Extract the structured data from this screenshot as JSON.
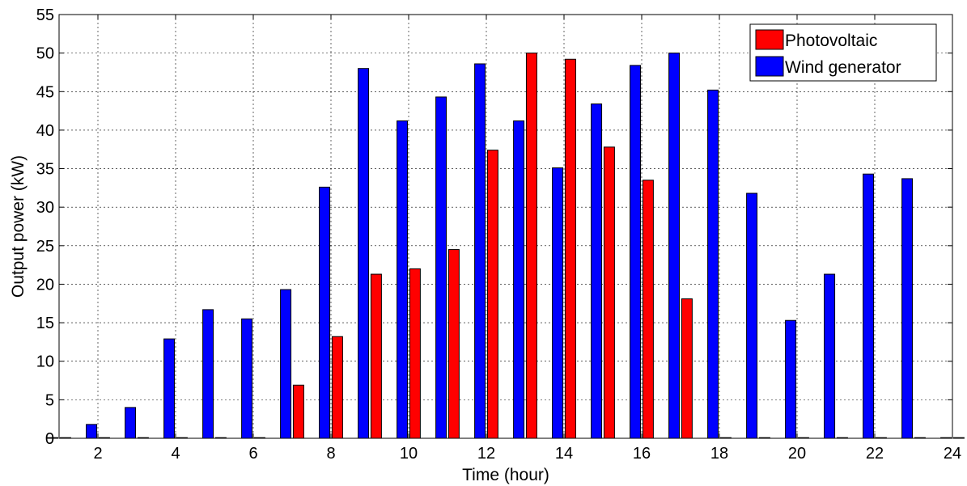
{
  "chart_data": {
    "type": "bar",
    "title": "",
    "xlabel": "Time (hour)",
    "ylabel": "Output power (kW)",
    "x": [
      1,
      2,
      3,
      4,
      5,
      6,
      7,
      8,
      9,
      10,
      11,
      12,
      13,
      14,
      15,
      16,
      17,
      18,
      19,
      20,
      21,
      22,
      23,
      24
    ],
    "xlim": [
      1,
      24
    ],
    "ylim": [
      0,
      55
    ],
    "xticks": [
      2,
      4,
      6,
      8,
      10,
      12,
      14,
      16,
      18,
      20,
      22,
      24
    ],
    "yticks": [
      0,
      5,
      10,
      15,
      20,
      25,
      30,
      35,
      40,
      45,
      50,
      55
    ],
    "grid": true,
    "legend_position": "top-right",
    "series": [
      {
        "name": "Wind generator",
        "color": "#0000ff",
        "values": [
          0,
          1.8,
          4.0,
          12.9,
          16.7,
          15.5,
          19.3,
          32.6,
          48.0,
          41.2,
          44.3,
          48.6,
          41.2,
          35.1,
          43.4,
          48.4,
          50.0,
          45.2,
          31.8,
          15.3,
          21.3,
          34.3,
          33.7,
          0
        ]
      },
      {
        "name": "Photovoltaic",
        "color": "#ff0000",
        "values": [
          0,
          0,
          0,
          0,
          0,
          0,
          6.9,
          13.2,
          21.3,
          22.0,
          24.5,
          37.4,
          50.0,
          49.2,
          37.8,
          33.5,
          18.1,
          0,
          0,
          0,
          0,
          0,
          0,
          0
        ]
      }
    ]
  }
}
